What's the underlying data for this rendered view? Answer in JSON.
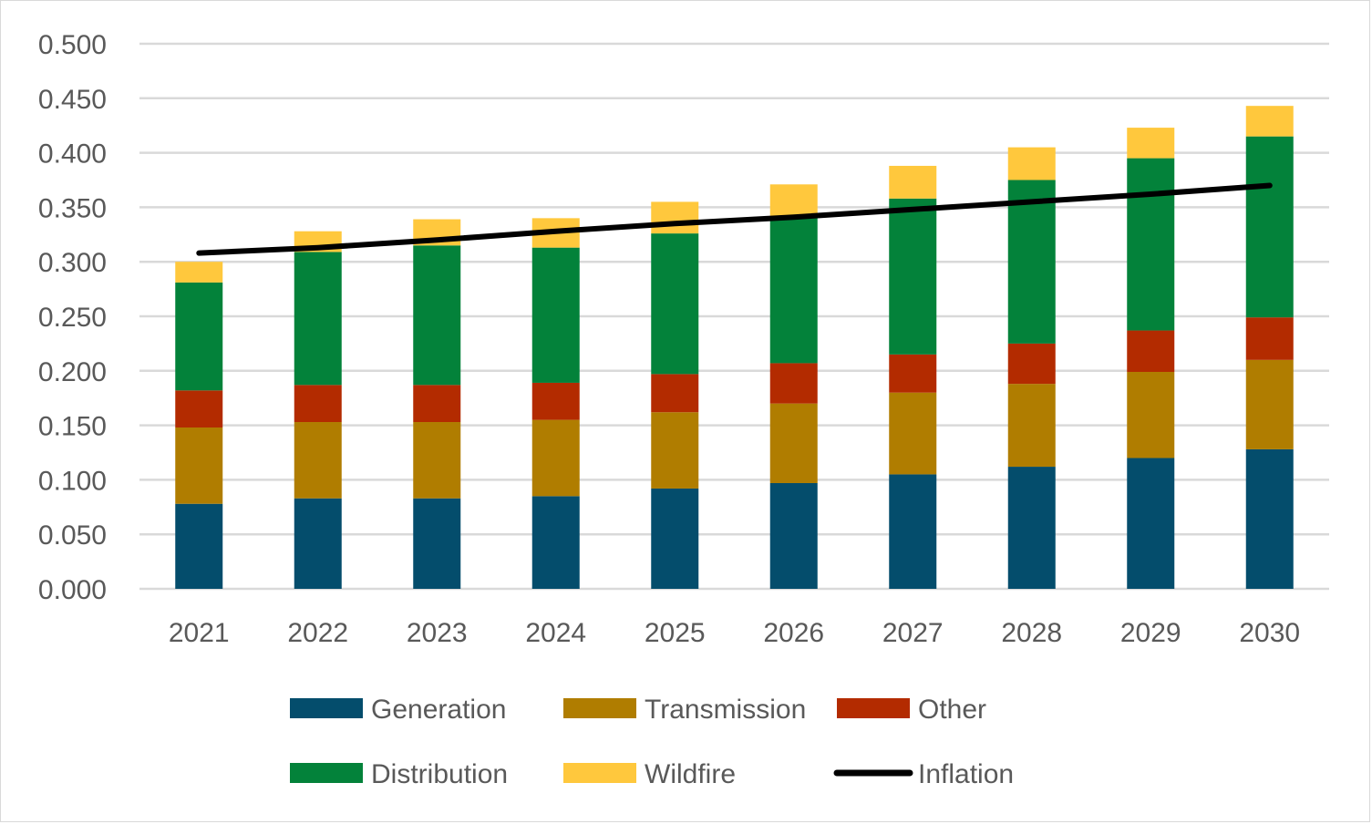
{
  "chart_data": {
    "type": "bar",
    "stacked": true,
    "title": "",
    "xlabel": "",
    "ylabel": "",
    "ylim": [
      0,
      0.5
    ],
    "y_ticks": [
      "0.000",
      "0.050",
      "0.100",
      "0.150",
      "0.200",
      "0.250",
      "0.300",
      "0.350",
      "0.400",
      "0.450",
      "0.500"
    ],
    "grid": true,
    "legend_position": "bottom",
    "categories": [
      "2021",
      "2022",
      "2023",
      "2024",
      "2025",
      "2026",
      "2027",
      "2028",
      "2029",
      "2030"
    ],
    "series": [
      {
        "name": "Generation",
        "type": "bar",
        "color": "#044d6c",
        "values": [
          0.078,
          0.083,
          0.083,
          0.085,
          0.092,
          0.097,
          0.105,
          0.112,
          0.12,
          0.128
        ]
      },
      {
        "name": "Transmission",
        "type": "bar",
        "color": "#b07d00",
        "values": [
          0.07,
          0.07,
          0.07,
          0.07,
          0.07,
          0.073,
          0.075,
          0.076,
          0.079,
          0.082
        ]
      },
      {
        "name": "Other",
        "type": "bar",
        "color": "#b32b00",
        "values": [
          0.034,
          0.034,
          0.034,
          0.034,
          0.035,
          0.037,
          0.035,
          0.037,
          0.038,
          0.039
        ]
      },
      {
        "name": "Distribution",
        "type": "bar",
        "color": "#03823a",
        "values": [
          0.099,
          0.122,
          0.128,
          0.124,
          0.129,
          0.135,
          0.143,
          0.15,
          0.158,
          0.166
        ]
      },
      {
        "name": "Wildfire",
        "type": "bar",
        "color": "#ffc83d",
        "values": [
          0.019,
          0.019,
          0.024,
          0.027,
          0.029,
          0.029,
          0.03,
          0.03,
          0.028,
          0.028
        ]
      },
      {
        "name": "Inflation",
        "type": "line",
        "color": "#000000",
        "values": [
          0.308,
          0.313,
          0.32,
          0.328,
          0.335,
          0.341,
          0.348,
          0.355,
          0.362,
          0.37
        ]
      }
    ]
  }
}
